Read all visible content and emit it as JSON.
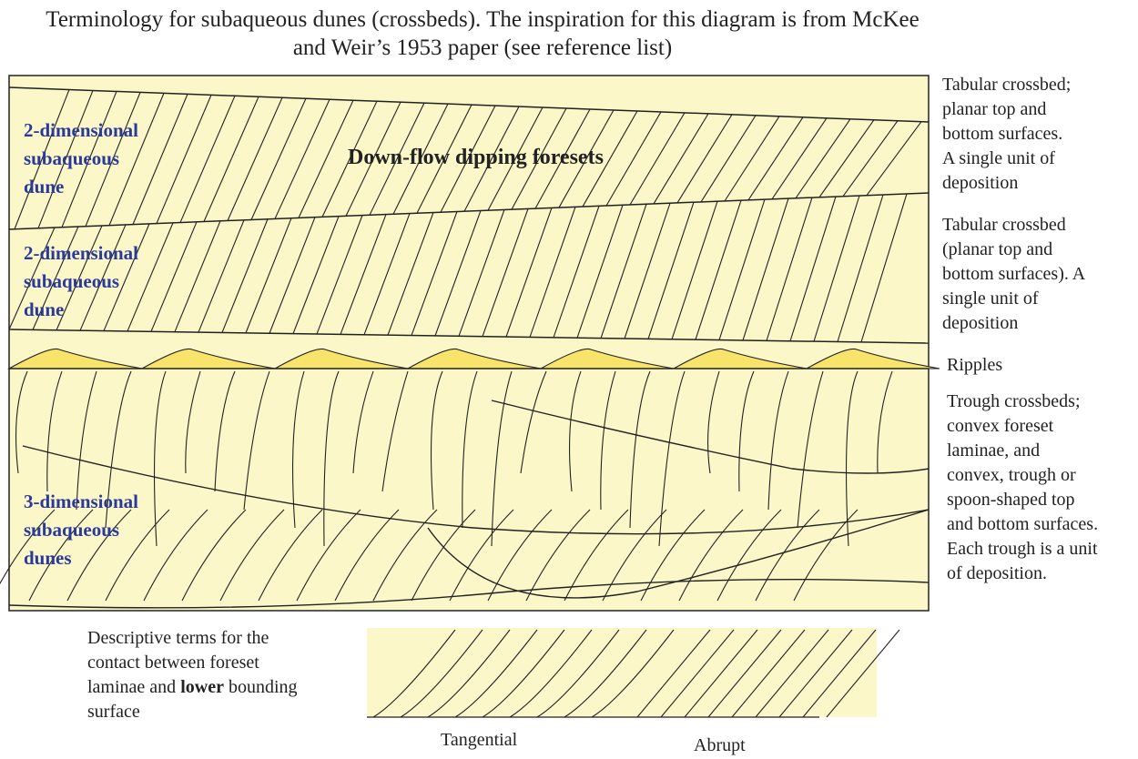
{
  "title": "Terminology for subaqueous dunes (crossbeds). The inspiration for this diagram is from McKee and Weir’s 1953 paper (see reference list)",
  "units": [
    {
      "label_lines": [
        "2-dimensional",
        "subaqueous",
        "dune"
      ],
      "annotation_lines": [
        "Tabular crossbed;",
        "planar top and",
        "bottom surfaces.",
        "A single unit of",
        "deposition"
      ]
    },
    {
      "label_lines": [
        "2-dimensional",
        "subaqueous",
        "dune"
      ],
      "annotation_lines": [
        "Tabular crossbed",
        "(planar top and",
        "bottom surfaces). A",
        "single unit of",
        "deposition"
      ]
    },
    {
      "label_lines": [],
      "annotation_lines": [
        "Ripples"
      ]
    },
    {
      "label_lines": [
        "3-dimensional",
        "subaqueous",
        "dunes"
      ],
      "annotation_lines": [
        "Trough crossbeds;",
        "convex foreset",
        "laminae, and",
        "convex, trough or",
        "spoon-shaped top",
        "and bottom surfaces.",
        "Each trough is a unit",
        "of deposition."
      ]
    }
  ],
  "center_label": "Down-flow dipping foresets",
  "descriptive_terms": {
    "text_lines": [
      "Descriptive terms for the",
      "contact between foreset",
      "laminae and ",
      "lower",
      " bounding",
      "surface"
    ],
    "tangential": "Tangential",
    "abrupt": "Abrupt"
  },
  "colors": {
    "sediment": "#fbf7c8",
    "ripple": "#f8e46a",
    "label": "#2a3a9a",
    "line": "#222222"
  }
}
